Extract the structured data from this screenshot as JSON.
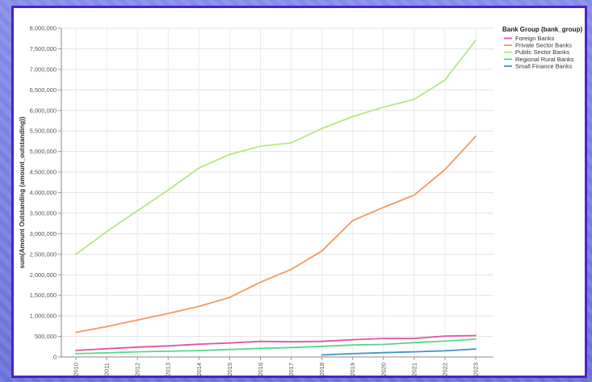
{
  "chart_data": {
    "type": "line",
    "title": "",
    "xlabel": "",
    "ylabel": "sum(Amount Outstanding (amount_outstanding))",
    "legend_title": "Bank Group (bank_group)",
    "legend_position": "right",
    "grid": true,
    "ylim": [
      0,
      8000000
    ],
    "yticks": [
      0,
      500000,
      1000000,
      1500000,
      2000000,
      2500000,
      3000000,
      3500000,
      4000000,
      4500000,
      5000000,
      5500000,
      6000000,
      6500000,
      7000000,
      7500000,
      8000000
    ],
    "ytick_labels": [
      "0",
      "500,000",
      "1,000,000",
      "1,500,000",
      "2,000,000",
      "2,500,000",
      "3,000,000",
      "3,500,000",
      "4,000,000",
      "4,500,000",
      "5,000,000",
      "5,500,000",
      "6,000,000",
      "6,500,000",
      "7,000,000",
      "7,500,000",
      "8,000,000"
    ],
    "x": [
      "2010",
      "2011",
      "2012",
      "2013",
      "2014",
      "2015",
      "2016",
      "2017",
      "2018",
      "2019",
      "2020",
      "2021",
      "2022",
      "2023"
    ],
    "series": [
      {
        "name": "Foreign Banks",
        "color": "#e0569c",
        "values": [
          160000,
          200000,
          240000,
          270000,
          310000,
          340000,
          380000,
          370000,
          380000,
          420000,
          450000,
          450000,
          510000,
          520000
        ]
      },
      {
        "name": "Private Sector Banks",
        "color": "#f4995a",
        "values": [
          600000,
          740000,
          900000,
          1060000,
          1230000,
          1450000,
          1820000,
          2130000,
          2580000,
          3320000,
          3640000,
          3940000,
          4560000,
          5370000
        ]
      },
      {
        "name": "Public Sector Banks",
        "color": "#b5e87e",
        "values": [
          2500000,
          3050000,
          3560000,
          4060000,
          4600000,
          4930000,
          5130000,
          5210000,
          5560000,
          5850000,
          6080000,
          6270000,
          6740000,
          7710000
        ]
      },
      {
        "name": "Regional Rural Banks",
        "color": "#54d98a",
        "values": [
          80000,
          100000,
          125000,
          140000,
          155000,
          180000,
          210000,
          230000,
          260000,
          290000,
          305000,
          350000,
          385000,
          435000
        ]
      },
      {
        "name": "Small Finance Banks",
        "color": "#3d93c8",
        "values": [
          null,
          null,
          null,
          null,
          null,
          null,
          null,
          null,
          50000,
          80000,
          105000,
          125000,
          150000,
          195000
        ]
      }
    ]
  }
}
